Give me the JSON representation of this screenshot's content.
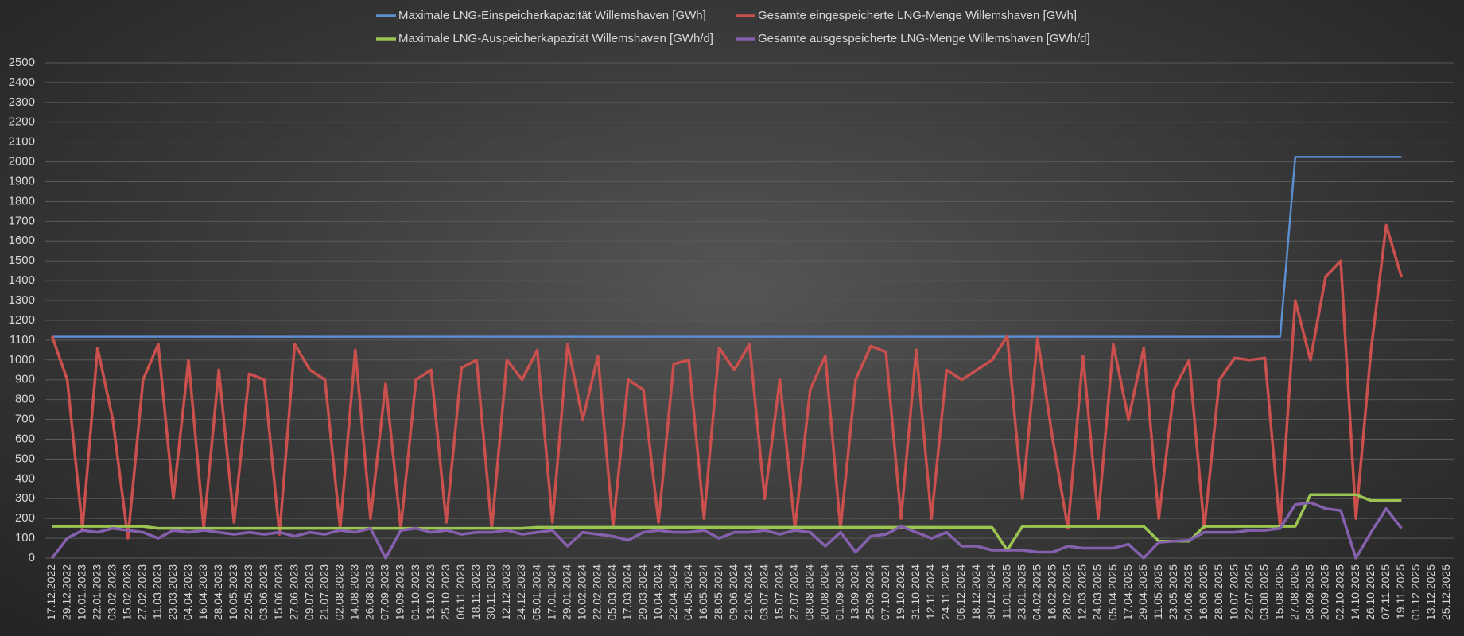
{
  "chart_data": {
    "type": "line",
    "categories": [
      "17.12.2022",
      "29.12.2022",
      "10.01.2023",
      "22.01.2023",
      "03.02.2023",
      "15.02.2023",
      "27.02.2023",
      "11.03.2023",
      "23.03.2023",
      "04.04.2023",
      "16.04.2023",
      "28.04.2023",
      "10.05.2023",
      "22.05.2023",
      "03.06.2023",
      "15.06.2023",
      "27.06.2023",
      "09.07.2023",
      "21.07.2023",
      "02.08.2023",
      "14.08.2023",
      "26.08.2023",
      "07.09.2023",
      "19.09.2023",
      "01.10.2023",
      "13.10.2023",
      "25.10.2023",
      "06.11.2023",
      "18.11.2023",
      "30.11.2023",
      "12.12.2023",
      "24.12.2023",
      "05.01.2024",
      "17.01.2024",
      "29.01.2024",
      "10.02.2024",
      "22.02.2024",
      "05.03.2024",
      "17.03.2024",
      "29.03.2024",
      "10.04.2024",
      "22.04.2024",
      "04.05.2024",
      "16.05.2024",
      "28.05.2024",
      "09.06.2024",
      "21.06.2024",
      "03.07.2024",
      "15.07.2024",
      "27.07.2024",
      "08.08.2024",
      "20.08.2024",
      "01.09.2024",
      "13.09.2024",
      "25.09.2024",
      "07.10.2024",
      "19.10.2024",
      "31.10.2024",
      "12.11.2024",
      "24.11.2024",
      "06.12.2024",
      "18.12.2024",
      "30.12.2024",
      "11.01.2025",
      "23.01.2025",
      "04.02.2025",
      "16.02.2025",
      "28.02.2025",
      "12.03.2025",
      "24.03.2025",
      "05.04.2025",
      "17.04.2025",
      "29.04.2025",
      "11.05.2025",
      "23.05.2025",
      "04.06.2025",
      "16.06.2025",
      "28.06.2025",
      "10.07.2025",
      "22.07.2025",
      "03.08.2025",
      "15.08.2025",
      "27.08.2025",
      "08.09.2025",
      "20.09.2025",
      "02.10.2025",
      "14.10.2025",
      "26.10.2025",
      "07.11.2025",
      "19.11.2025",
      "01.12.2025",
      "13.12.2025",
      "25.12.2025"
    ],
    "series": [
      {
        "name": "Maximale LNG-Einspeicherkapazität Willemshaven [GWh]",
        "color": "#5b8fd0",
        "values": [
          1117,
          1117,
          1117,
          1117,
          1117,
          1117,
          1117,
          1117,
          1117,
          1117,
          1117,
          1117,
          1117,
          1117,
          1117,
          1117,
          1117,
          1117,
          1117,
          1117,
          1117,
          1117,
          1117,
          1117,
          1117,
          1117,
          1117,
          1117,
          1117,
          1117,
          1117,
          1117,
          1117,
          1117,
          1117,
          1117,
          1117,
          1117,
          1117,
          1117,
          1117,
          1117,
          1117,
          1117,
          1117,
          1117,
          1117,
          1117,
          1117,
          1117,
          1117,
          1117,
          1117,
          1117,
          1117,
          1117,
          1117,
          1117,
          1117,
          1117,
          1117,
          1117,
          1117,
          1117,
          1117,
          1117,
          1117,
          1117,
          1117,
          1117,
          1117,
          1117,
          1117,
          1117,
          1117,
          1117,
          1117,
          1117,
          1117,
          1117,
          1117,
          1117,
          2025,
          2025,
          2025,
          2025,
          2025,
          2025,
          2025,
          2025,
          null,
          null,
          null
        ]
      },
      {
        "name": "Gesamte eingespeicherte LNG-Menge Willemshaven [GWh]",
        "color": "#c9504c",
        "values": [
          1120,
          900,
          150,
          1060,
          700,
          100,
          900,
          1080,
          300,
          1000,
          150,
          950,
          180,
          930,
          900,
          120,
          1080,
          950,
          900,
          150,
          1050,
          200,
          880,
          150,
          900,
          950,
          180,
          960,
          1000,
          150,
          1000,
          900,
          1050,
          180,
          1080,
          700,
          1020,
          160,
          900,
          850,
          180,
          980,
          1000,
          200,
          1060,
          950,
          1080,
          300,
          900,
          150,
          850,
          1020,
          150,
          900,
          1070,
          1040,
          200,
          1050,
          200,
          950,
          900,
          950,
          1000,
          1120,
          300,
          1110,
          600,
          150,
          1020,
          200,
          1080,
          700,
          1060,
          200,
          850,
          1000,
          150,
          900,
          1010,
          1000,
          1010,
          150,
          1300,
          1000,
          1420,
          1500,
          200,
          1050,
          1680,
          1420,
          null,
          null,
          null
        ]
      },
      {
        "name": "Maximale LNG-Auspeicherkapazität Willemshaven [GWh/d]",
        "color": "#9bc451",
        "values": [
          160,
          160,
          160,
          160,
          160,
          160,
          160,
          150,
          150,
          150,
          150,
          150,
          150,
          150,
          150,
          150,
          150,
          150,
          150,
          150,
          150,
          150,
          150,
          150,
          150,
          150,
          150,
          150,
          150,
          150,
          150,
          150,
          155,
          155,
          155,
          155,
          155,
          155,
          155,
          155,
          155,
          155,
          155,
          155,
          155,
          155,
          155,
          155,
          155,
          155,
          155,
          155,
          155,
          155,
          155,
          155,
          155,
          155,
          155,
          155,
          155,
          155,
          155,
          40,
          160,
          160,
          160,
          160,
          160,
          160,
          160,
          160,
          160,
          85,
          85,
          85,
          160,
          160,
          160,
          160,
          160,
          160,
          160,
          320,
          320,
          320,
          320,
          290,
          290,
          290,
          null,
          null,
          null
        ]
      },
      {
        "name": "Gesamte ausgespeicherte LNG-Menge Willemshaven [GWh/d]",
        "color": "#8560ad",
        "values": [
          0,
          100,
          140,
          130,
          150,
          140,
          130,
          100,
          140,
          130,
          140,
          130,
          120,
          130,
          120,
          130,
          110,
          130,
          120,
          140,
          130,
          150,
          0,
          140,
          150,
          130,
          140,
          120,
          130,
          130,
          140,
          120,
          130,
          140,
          60,
          130,
          120,
          110,
          90,
          130,
          140,
          130,
          130,
          140,
          100,
          130,
          130,
          140,
          120,
          140,
          130,
          60,
          130,
          30,
          110,
          120,
          160,
          130,
          100,
          130,
          60,
          60,
          40,
          40,
          40,
          30,
          30,
          60,
          50,
          50,
          50,
          70,
          0,
          80,
          85,
          90,
          130,
          130,
          130,
          140,
          140,
          150,
          270,
          280,
          250,
          240,
          0,
          130,
          250,
          150,
          null,
          null,
          null
        ]
      }
    ],
    "ylim": [
      0,
      2500
    ],
    "yticks": [
      0,
      100,
      200,
      300,
      400,
      500,
      600,
      700,
      800,
      900,
      1000,
      1100,
      1200,
      1300,
      1400,
      1500,
      1600,
      1700,
      1800,
      1900,
      2000,
      2100,
      2200,
      2300,
      2400,
      2500
    ],
    "grid": true,
    "legend": "top"
  }
}
